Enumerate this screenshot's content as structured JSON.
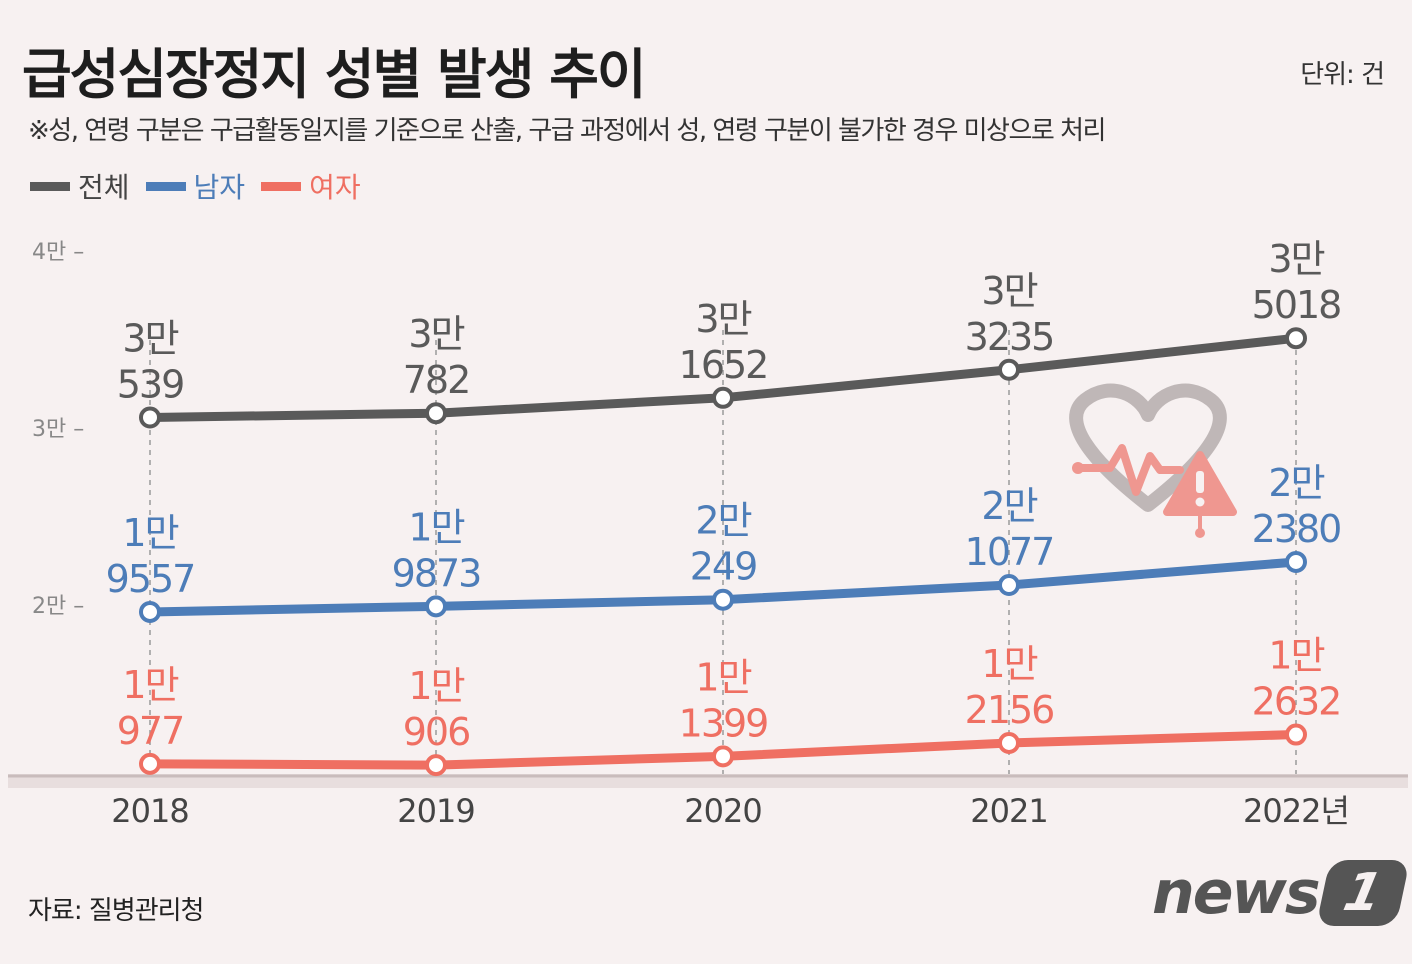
{
  "header": {
    "title": "급성심장정지 성별 발생 추이",
    "unit": "단위: 건",
    "note": "※성, 연령 구분은 구급활동일지를 기준으로 산출, 구급 과정에서 성, 연령 구분이 불가한 경우 미상으로 처리"
  },
  "legend": [
    {
      "label": "전체",
      "color": "#5a5a5a"
    },
    {
      "label": "남자",
      "color": "#4d7db8"
    },
    {
      "label": "여자",
      "color": "#ef6f62"
    }
  ],
  "footer": {
    "source": "자료: 질병관리청",
    "logo_text": "news",
    "logo_mark": "1"
  },
  "chart_data": {
    "type": "line",
    "title": "급성심장정지 성별 발생 추이",
    "categories": [
      "2018",
      "2019",
      "2020",
      "2021",
      "2022년"
    ],
    "x": [
      2018,
      2019,
      2020,
      2021,
      2022
    ],
    "ylim": [
      9500,
      40000
    ],
    "yticks": [
      {
        "value": 40000,
        "label": "4만 –"
      },
      {
        "value": 30000,
        "label": "3만 –"
      },
      {
        "value": 20000,
        "label": "2만 –"
      }
    ],
    "grid": "vertical dashed",
    "series": [
      {
        "name": "전체",
        "color": "#5a5a5a",
        "values": [
          30539,
          30782,
          31652,
          33235,
          35018
        ],
        "labels": [
          [
            "3만",
            "539"
          ],
          [
            "3만",
            "782"
          ],
          [
            "3만",
            "1652"
          ],
          [
            "3만",
            "3235"
          ],
          [
            "3만",
            "5018"
          ]
        ]
      },
      {
        "name": "남자",
        "color": "#4d7db8",
        "values": [
          19557,
          19873,
          20249,
          21077,
          22380
        ],
        "labels": [
          [
            "1만",
            "9557"
          ],
          [
            "1만",
            "9873"
          ],
          [
            "2만",
            "249"
          ],
          [
            "2만",
            "1077"
          ],
          [
            "2만",
            "2380"
          ]
        ]
      },
      {
        "name": "여자",
        "color": "#ef6f62",
        "values": [
          10977,
          10906,
          11399,
          12156,
          12632
        ],
        "labels": [
          [
            "1만",
            "977"
          ],
          [
            "1만",
            "906"
          ],
          [
            "1만",
            "1399"
          ],
          [
            "1만",
            "2156"
          ],
          [
            "1만",
            "2632"
          ]
        ]
      }
    ]
  }
}
